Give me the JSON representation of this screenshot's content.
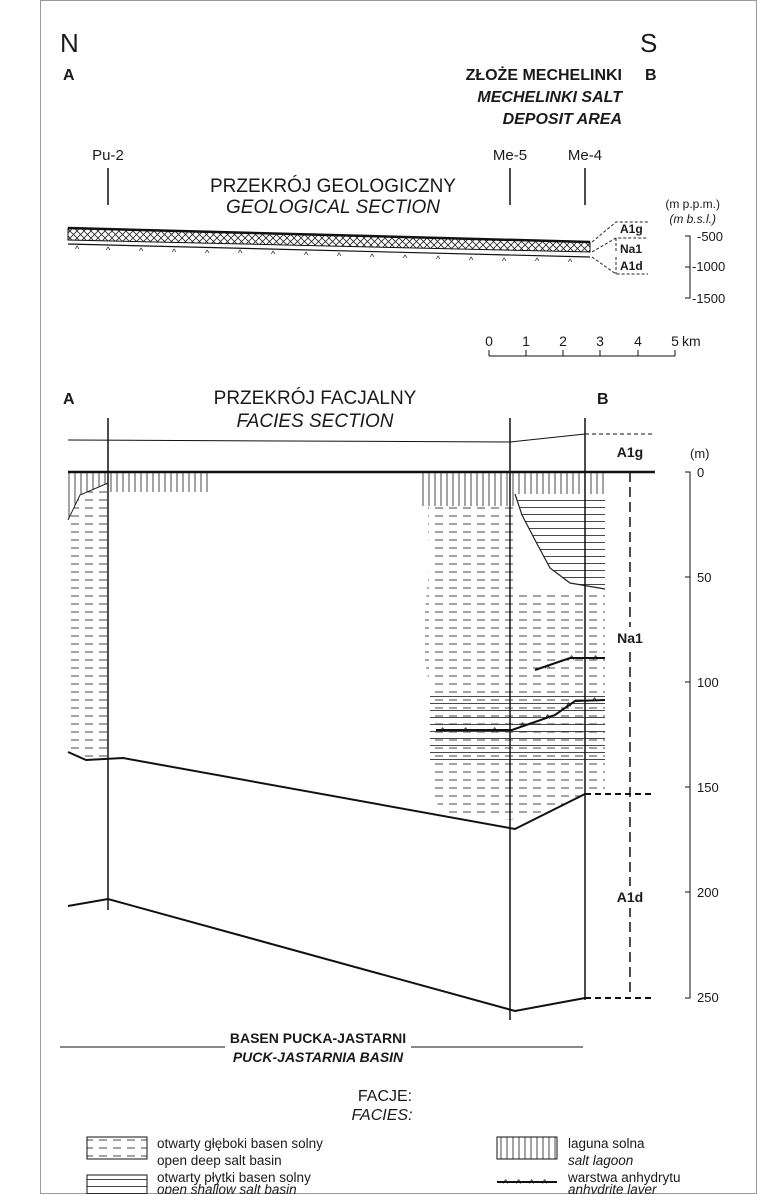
{
  "compass": {
    "north": "N",
    "south": "S"
  },
  "top_section": {
    "point_a": "A",
    "point_b": "B",
    "deposit_pl": "ZŁOŻE MECHELINKI",
    "deposit_en_1": "MECHELINKI SALT",
    "deposit_en_2": "DEPOSIT AREA",
    "title_pl": "PRZEKRÓJ GEOLOGICZNY",
    "title_en": "GEOLOGICAL SECTION",
    "wells": [
      "Pu-2",
      "Me-5",
      "Me-4"
    ],
    "layers": [
      "A1g",
      "Na1",
      "A1d"
    ],
    "depth_unit_pl": "(m p.p.m.)",
    "depth_unit_en": "(m b.s.l.)",
    "depth_ticks": [
      "-500",
      "-1000",
      "-1500"
    ]
  },
  "scale_bar": {
    "ticks": [
      "0",
      "1",
      "2",
      "3",
      "4",
      "5"
    ],
    "unit": "km"
  },
  "facies_section": {
    "point_a": "A",
    "point_b": "B",
    "title_pl": "PRZEKRÓJ FACJALNY",
    "title_en": "FACIES SECTION",
    "layers": [
      "A1g",
      "Na1",
      "A1d"
    ],
    "depth_unit": "(m)",
    "depth_ticks": [
      "0",
      "50",
      "100",
      "150",
      "200",
      "250"
    ]
  },
  "basin": {
    "name_pl": "BASEN PUCKA-JASTARNI",
    "name_en": "PUCK-JASTARNIA BASIN"
  },
  "legend": {
    "title_pl": "FACJE:",
    "title_en": "FACIES:",
    "items": [
      {
        "pl": "otwarty głęboki basen solny",
        "en": "open deep salt basin"
      },
      {
        "pl": "laguna solna",
        "en": "salt lagoon"
      },
      {
        "pl": "otwarty płytki basen solny",
        "en": "open shallow salt basin"
      },
      {
        "pl": "warstwa anhydrytu",
        "en": "anhydrite layer"
      }
    ]
  }
}
